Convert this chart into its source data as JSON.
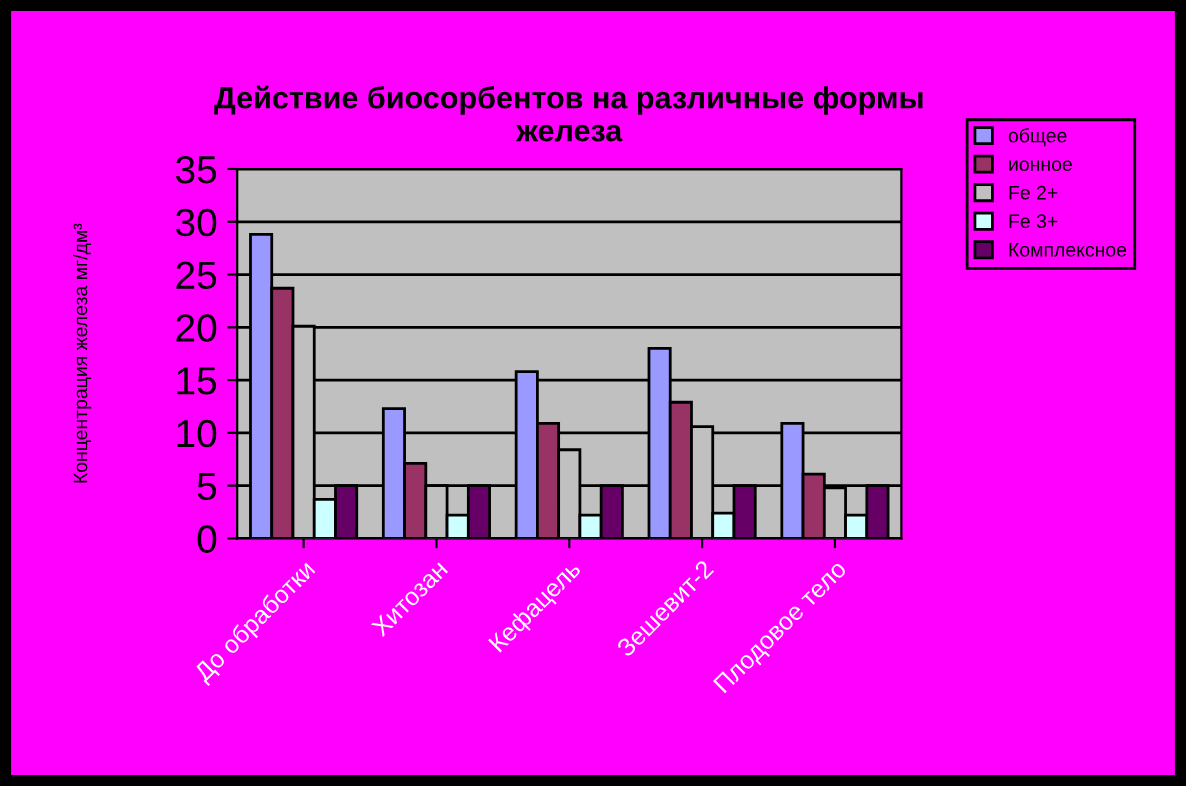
{
  "chart_data": {
    "type": "bar",
    "title": "Действие биосорбентов на различные формы\nжелеза",
    "ylabel": "Концентрация железа мг/дм³",
    "categories": [
      "До обработки",
      "Хитозан",
      "Кефацель",
      "Зешевит-2",
      "Плодовое тело"
    ],
    "series": [
      {
        "name": "общее",
        "color": "#9999ff",
        "values": [
          28.8,
          12.3,
          15.8,
          18.0,
          10.9
        ]
      },
      {
        "name": "ионное",
        "color": "#993366",
        "values": [
          23.7,
          7.1,
          10.9,
          12.9,
          6.1
        ]
      },
      {
        "name": "Fe 2+",
        "color": "#c0c0c0",
        "values": [
          20.1,
          5.0,
          8.4,
          10.6,
          4.8
        ]
      },
      {
        "name": "Fe 3+",
        "color": "#ccffff",
        "values": [
          3.7,
          2.2,
          2.2,
          2.4,
          2.2
        ]
      },
      {
        "name": "Комплексное",
        "color": "#660066",
        "values": [
          5.0,
          5.0,
          5.0,
          5.0,
          5.0
        ]
      }
    ],
    "ylim": [
      0,
      35
    ],
    "yticks": [
      0,
      5,
      10,
      15,
      20,
      25,
      30,
      35
    ],
    "grid": "y",
    "legend": "top right"
  }
}
